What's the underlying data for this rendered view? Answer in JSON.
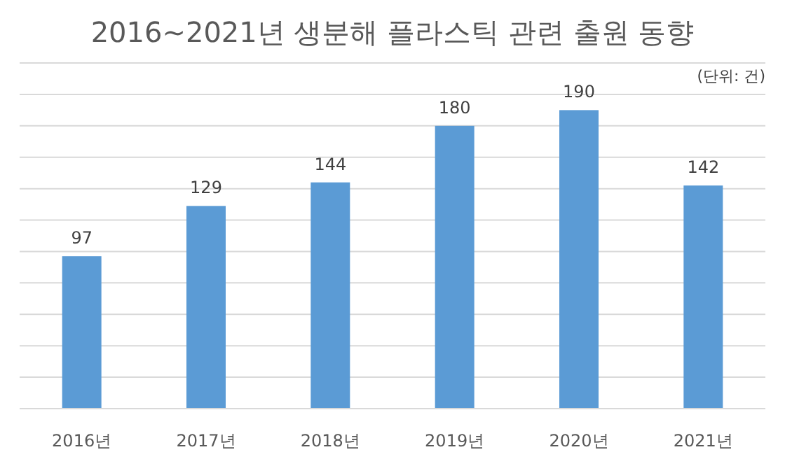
{
  "chart_data": {
    "type": "bar",
    "title": "2016~2021년 생분해 플라스틱 관련 출원 동향",
    "annotations": [
      "(단위: 건)"
    ],
    "categories": [
      "2016년",
      "2017년",
      "2018년",
      "2019년",
      "2020년",
      "2021년"
    ],
    "values": [
      97,
      129,
      144,
      180,
      190,
      142
    ],
    "color": "#5b9bd5",
    "data_labels": true,
    "grid": "y",
    "tick_labels": "x",
    "ylim": [
      0,
      220
    ],
    "yticks": [
      {
        "value": 0,
        "label": null
      },
      {
        "value": 20,
        "label": null
      },
      {
        "value": 40,
        "label": null
      },
      {
        "value": 60,
        "label": null
      },
      {
        "value": 80,
        "label": null
      },
      {
        "value": 100,
        "label": null
      },
      {
        "value": 120,
        "label": null
      },
      {
        "value": 140,
        "label": null
      },
      {
        "value": 160,
        "label": null
      },
      {
        "value": 180,
        "label": null
      },
      {
        "value": 200,
        "label": null
      },
      {
        "value": 220,
        "label": null
      }
    ]
  }
}
